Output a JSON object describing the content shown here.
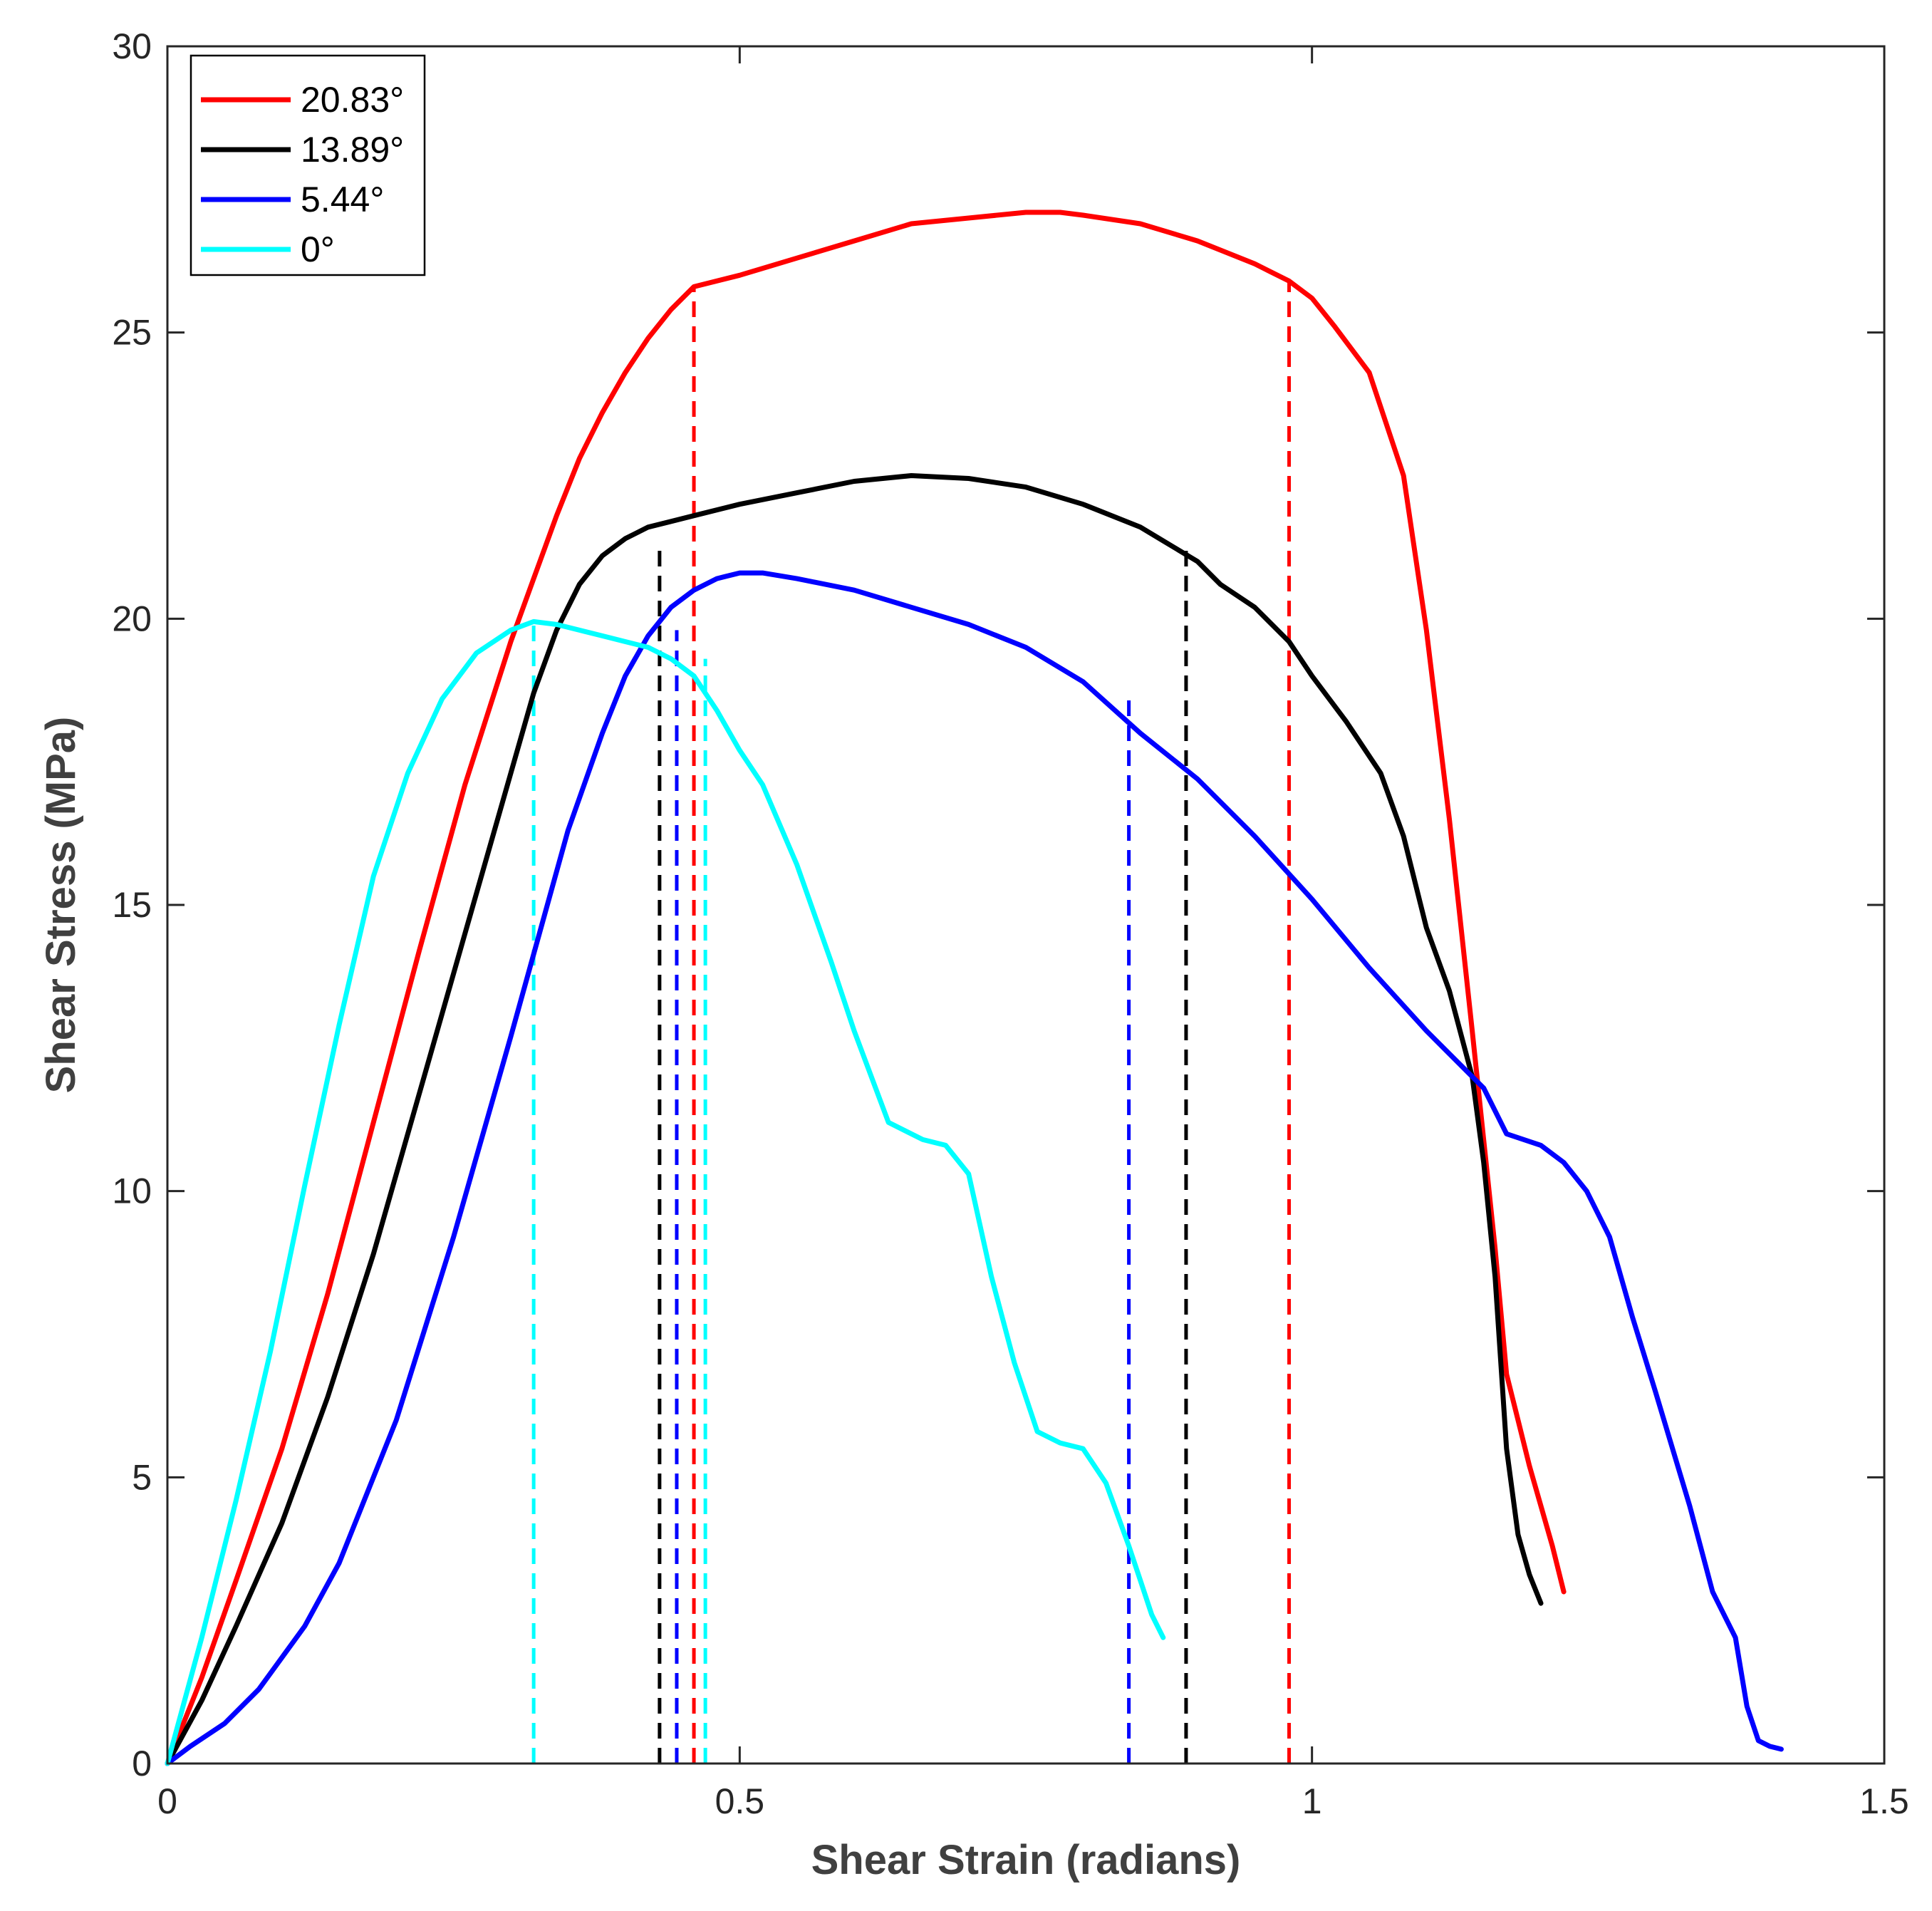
{
  "chart_data": {
    "type": "line",
    "title": "",
    "xlabel": "Shear Strain (radians)",
    "ylabel": "Shear Stress (MPa)",
    "xlim": [
      0,
      1.5
    ],
    "ylim": [
      0,
      30
    ],
    "xticks": [
      0,
      0.5,
      1,
      1.5
    ],
    "xtick_labels": [
      "0",
      "0.5",
      "1",
      "1.5"
    ],
    "yticks": [
      0,
      5,
      10,
      15,
      20,
      25,
      30
    ],
    "ytick_labels": [
      "0",
      "5",
      "10",
      "15",
      "20",
      "25",
      "30"
    ],
    "grid": false,
    "legend_position": "top-left",
    "series": [
      {
        "name": "20.83°",
        "color": "#ff0000",
        "x": [
          0,
          0.03,
          0.06,
          0.1,
          0.14,
          0.18,
          0.22,
          0.26,
          0.3,
          0.32,
          0.34,
          0.36,
          0.38,
          0.4,
          0.42,
          0.44,
          0.46,
          0.5,
          0.55,
          0.6,
          0.65,
          0.7,
          0.75,
          0.78,
          0.8,
          0.85,
          0.9,
          0.95,
          0.98,
          1.0,
          1.02,
          1.05,
          1.08,
          1.1,
          1.12,
          1.14,
          1.16,
          1.17,
          1.18,
          1.19,
          1.2,
          1.21,
          1.22
        ],
        "y": [
          0,
          1.5,
          3.2,
          5.5,
          8.2,
          11.2,
          14.2,
          17.1,
          19.6,
          20.7,
          21.8,
          22.8,
          23.6,
          24.3,
          24.9,
          25.4,
          25.8,
          26.0,
          26.3,
          26.6,
          26.9,
          27.0,
          27.1,
          27.1,
          27.05,
          26.9,
          26.6,
          26.2,
          25.9,
          25.6,
          25.1,
          24.3,
          22.5,
          19.8,
          16.5,
          12.8,
          9.0,
          6.8,
          6.0,
          5.2,
          4.5,
          3.8,
          3.0
        ]
      },
      {
        "name": "13.89°",
        "color": "#000000",
        "x": [
          0,
          0.03,
          0.06,
          0.1,
          0.14,
          0.18,
          0.22,
          0.26,
          0.3,
          0.32,
          0.34,
          0.36,
          0.38,
          0.4,
          0.42,
          0.44,
          0.46,
          0.5,
          0.55,
          0.6,
          0.65,
          0.7,
          0.75,
          0.8,
          0.85,
          0.9,
          0.92,
          0.95,
          0.98,
          1.0,
          1.03,
          1.06,
          1.08,
          1.1,
          1.12,
          1.14,
          1.15,
          1.16,
          1.17,
          1.18,
          1.19,
          1.2
        ],
        "y": [
          0,
          1.1,
          2.4,
          4.2,
          6.4,
          8.9,
          11.7,
          14.5,
          17.3,
          18.7,
          19.8,
          20.6,
          21.1,
          21.4,
          21.6,
          21.7,
          21.8,
          22.0,
          22.2,
          22.4,
          22.5,
          22.45,
          22.3,
          22.0,
          21.6,
          21.0,
          20.6,
          20.2,
          19.6,
          19.0,
          18.2,
          17.3,
          16.2,
          14.6,
          13.5,
          12.0,
          10.5,
          8.5,
          5.5,
          4.0,
          3.3,
          2.8
        ]
      },
      {
        "name": "5.44°",
        "color": "#0000ff",
        "x": [
          0,
          0.02,
          0.05,
          0.08,
          0.12,
          0.15,
          0.2,
          0.25,
          0.3,
          0.35,
          0.38,
          0.4,
          0.42,
          0.44,
          0.46,
          0.48,
          0.5,
          0.52,
          0.55,
          0.6,
          0.65,
          0.7,
          0.75,
          0.8,
          0.85,
          0.9,
          0.95,
          1.0,
          1.05,
          1.1,
          1.15,
          1.17,
          1.2,
          1.22,
          1.24,
          1.26,
          1.28,
          1.3,
          1.33,
          1.35,
          1.37,
          1.38,
          1.39,
          1.4,
          1.41
        ],
        "y": [
          0,
          0.3,
          0.7,
          1.3,
          2.4,
          3.5,
          6.0,
          9.2,
          12.7,
          16.3,
          18.0,
          19.0,
          19.7,
          20.2,
          20.5,
          20.7,
          20.8,
          20.8,
          20.7,
          20.5,
          20.2,
          19.9,
          19.5,
          18.9,
          18.0,
          17.2,
          16.2,
          15.1,
          13.9,
          12.8,
          11.8,
          11.0,
          10.8,
          10.5,
          10.0,
          9.2,
          7.8,
          6.5,
          4.5,
          3.0,
          2.2,
          1.0,
          0.4,
          0.3,
          0.25
        ]
      },
      {
        "name": "0°",
        "color": "#00ffff",
        "x": [
          0,
          0.03,
          0.06,
          0.09,
          0.12,
          0.15,
          0.18,
          0.21,
          0.24,
          0.27,
          0.3,
          0.32,
          0.34,
          0.36,
          0.38,
          0.4,
          0.42,
          0.44,
          0.46,
          0.48,
          0.5,
          0.52,
          0.55,
          0.58,
          0.6,
          0.63,
          0.66,
          0.68,
          0.7,
          0.72,
          0.74,
          0.76,
          0.78,
          0.8,
          0.82,
          0.84,
          0.85,
          0.86,
          0.87
        ],
        "y": [
          0,
          2.2,
          4.6,
          7.2,
          10.1,
          12.9,
          15.5,
          17.3,
          18.6,
          19.4,
          19.8,
          19.95,
          19.9,
          19.8,
          19.7,
          19.6,
          19.5,
          19.3,
          19.0,
          18.4,
          17.7,
          17.1,
          15.7,
          14.0,
          12.8,
          11.2,
          10.9,
          10.8,
          10.3,
          8.5,
          7.0,
          5.8,
          5.6,
          5.5,
          4.9,
          3.8,
          3.2,
          2.6,
          2.2
        ]
      }
    ],
    "markers": [
      {
        "series": "20.83°",
        "color": "#ff0000",
        "x": 0.46,
        "y": 25.8
      },
      {
        "series": "20.83°",
        "color": "#ff0000",
        "x": 0.98,
        "y": 25.9
      },
      {
        "series": "13.89°",
        "color": "#000000",
        "x": 0.43,
        "y": 21.3
      },
      {
        "series": "13.89°",
        "color": "#000000",
        "x": 0.89,
        "y": 21.2
      },
      {
        "series": "5.44°",
        "color": "#0000ff",
        "x": 0.445,
        "y": 19.8
      },
      {
        "series": "5.44°",
        "color": "#0000ff",
        "x": 0.84,
        "y": 18.6
      },
      {
        "series": "0°",
        "color": "#00ffff",
        "x": 0.32,
        "y": 19.9
      },
      {
        "series": "0°",
        "color": "#00ffff",
        "x": 0.47,
        "y": 19.3
      }
    ]
  }
}
